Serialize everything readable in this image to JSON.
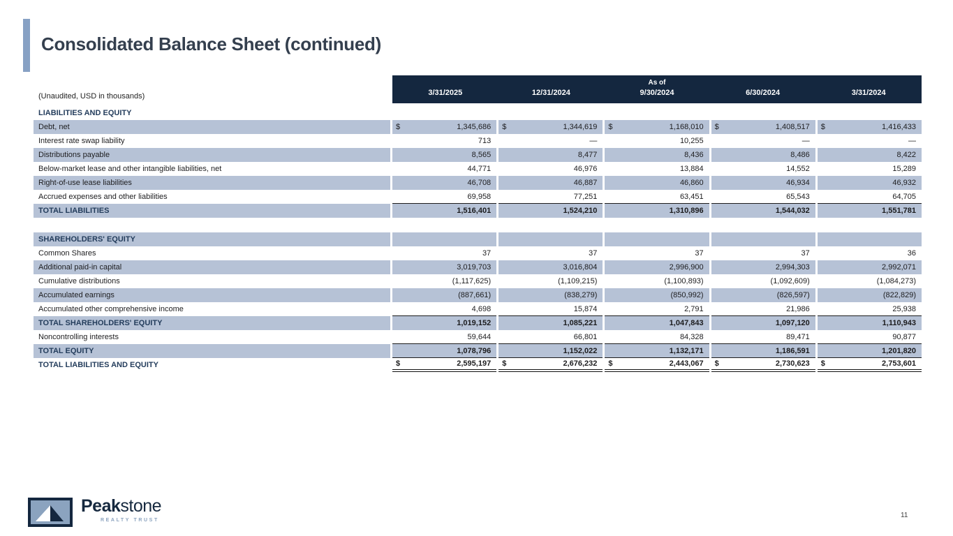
{
  "slide": {
    "title": "Consolidated Balance Sheet (continued)",
    "page_number": "11"
  },
  "colors": {
    "header_navy": "#14273f",
    "row_shade": "#b6c2d6",
    "accent_bar": "#87a1c4",
    "navy_text": "#243d5c"
  },
  "table": {
    "note": "(Unaudited, USD in thousands)",
    "currency_symbol": "$",
    "header": {
      "as_of_label": "As of",
      "dates": [
        "3/31/2025",
        "12/31/2024",
        "9/30/2024",
        "6/30/2024",
        "3/31/2024"
      ]
    },
    "rows": [
      {
        "label": "LIABILITIES AND EQUITY",
        "type": "section",
        "shaded": false
      },
      {
        "label": "Debt, net",
        "shaded": true,
        "dollar": true,
        "values": [
          "1,345,686",
          "1,344,619",
          "1,168,010",
          "1,408,517",
          "1,416,433"
        ]
      },
      {
        "label": "Interest rate swap liability",
        "shaded": false,
        "values": [
          "713",
          "—",
          "10,255",
          "—",
          "—"
        ]
      },
      {
        "label": "Distributions payable",
        "shaded": true,
        "values": [
          "8,565",
          "8,477",
          "8,436",
          "8,486",
          "8,422"
        ]
      },
      {
        "label": "Below-market lease and other intangible liabilities, net",
        "shaded": false,
        "values": [
          "44,771",
          "46,976",
          "13,884",
          "14,552",
          "15,289"
        ]
      },
      {
        "label": "Right-of-use lease liabilities",
        "shaded": true,
        "values": [
          "46,708",
          "46,887",
          "46,860",
          "46,934",
          "46,932"
        ]
      },
      {
        "label": "Accrued expenses and other liabilities",
        "shaded": false,
        "underline": "single",
        "values": [
          "69,958",
          "77,251",
          "63,451",
          "65,543",
          "64,705"
        ]
      },
      {
        "label": "TOTAL LIABILITIES",
        "type": "total",
        "shaded": true,
        "values": [
          "1,516,401",
          "1,524,210",
          "1,310,896",
          "1,544,032",
          "1,551,781"
        ]
      },
      {
        "type": "spacer"
      },
      {
        "label": "SHAREHOLDERS' EQUITY",
        "type": "section",
        "shaded": true
      },
      {
        "label": "Common Shares",
        "shaded": false,
        "values": [
          "37",
          "37",
          "37",
          "37",
          "36"
        ]
      },
      {
        "label": "Additional paid-in capital",
        "shaded": true,
        "values": [
          "3,019,703",
          "3,016,804",
          "2,996,900",
          "2,994,303",
          "2,992,071"
        ]
      },
      {
        "label": "Cumulative distributions",
        "shaded": false,
        "values": [
          "(1,117,625)",
          "(1,109,215)",
          "(1,100,893)",
          "(1,092,609)",
          "(1,084,273)"
        ]
      },
      {
        "label": "Accumulated earnings",
        "shaded": true,
        "values": [
          "(887,661)",
          "(838,279)",
          "(850,992)",
          "(826,597)",
          "(822,829)"
        ]
      },
      {
        "label": "Accumulated other comprehensive income",
        "shaded": false,
        "underline": "single",
        "values": [
          "4,698",
          "15,874",
          "2,791",
          "21,986",
          "25,938"
        ]
      },
      {
        "label": "TOTAL SHAREHOLDERS' EQUITY",
        "type": "total",
        "shaded": true,
        "values": [
          "1,019,152",
          "1,085,221",
          "1,047,843",
          "1,097,120",
          "1,110,943"
        ]
      },
      {
        "label": "Noncontrolling interests",
        "shaded": false,
        "underline": "single",
        "values": [
          "59,644",
          "66,801",
          "84,328",
          "89,471",
          "90,877"
        ]
      },
      {
        "label": "TOTAL EQUITY",
        "type": "total",
        "shaded": true,
        "underline": "single",
        "values": [
          "1,078,796",
          "1,152,022",
          "1,132,171",
          "1,186,591",
          "1,201,820"
        ]
      },
      {
        "label": "TOTAL LIABILITIES AND EQUITY",
        "type": "grand",
        "shaded": false,
        "dollar": true,
        "underline": "double",
        "values": [
          "2,595,197",
          "2,676,232",
          "2,443,067",
          "2,730,623",
          "2,753,601"
        ]
      }
    ]
  },
  "logo": {
    "name_bold": "Peak",
    "name_light": "stone",
    "tagline": "REALTY TRUST"
  }
}
